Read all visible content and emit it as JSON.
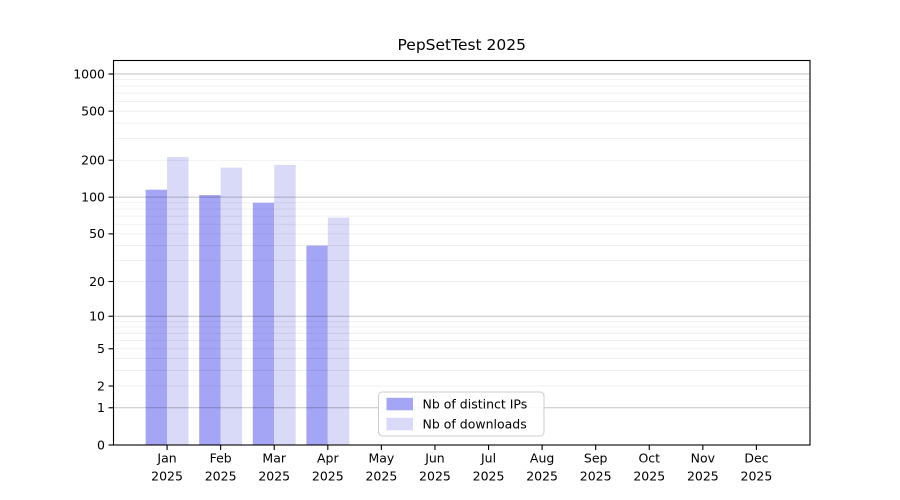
{
  "chart_data": {
    "type": "bar",
    "title": "PepSetTest 2025",
    "yscale": "log1p",
    "grid": true,
    "categories": [
      "Jan",
      "Feb",
      "Mar",
      "Apr",
      "May",
      "Jun",
      "Jul",
      "Aug",
      "Sep",
      "Oct",
      "Nov",
      "Dec"
    ],
    "category_year": "2025",
    "series": [
      {
        "name": "Nb of distinct IPs",
        "color": "#a5a5f5",
        "values": [
          115,
          104,
          90,
          40,
          0,
          0,
          0,
          0,
          0,
          0,
          0,
          0
        ]
      },
      {
        "name": "Nb of downloads",
        "color": "#d9d9f8",
        "values": [
          212,
          174,
          183,
          68,
          0,
          0,
          0,
          0,
          0,
          0,
          0,
          0
        ]
      }
    ],
    "ytick_labels": [
      "0",
      "1",
      "2",
      "5",
      "10",
      "20",
      "50",
      "100",
      "200",
      "500",
      "1000"
    ],
    "yticks": [
      0,
      1,
      2,
      5,
      10,
      20,
      50,
      100,
      200,
      500,
      1000
    ],
    "ylim": [
      0,
      1300
    ],
    "xlabel": "",
    "ylabel": "",
    "legend_position": "lower center",
    "colors": {
      "axis": "#000000",
      "grid_major": "rgba(0,0,0,0.24)",
      "grid_minor": "rgba(0,0,0,0.075)"
    }
  }
}
